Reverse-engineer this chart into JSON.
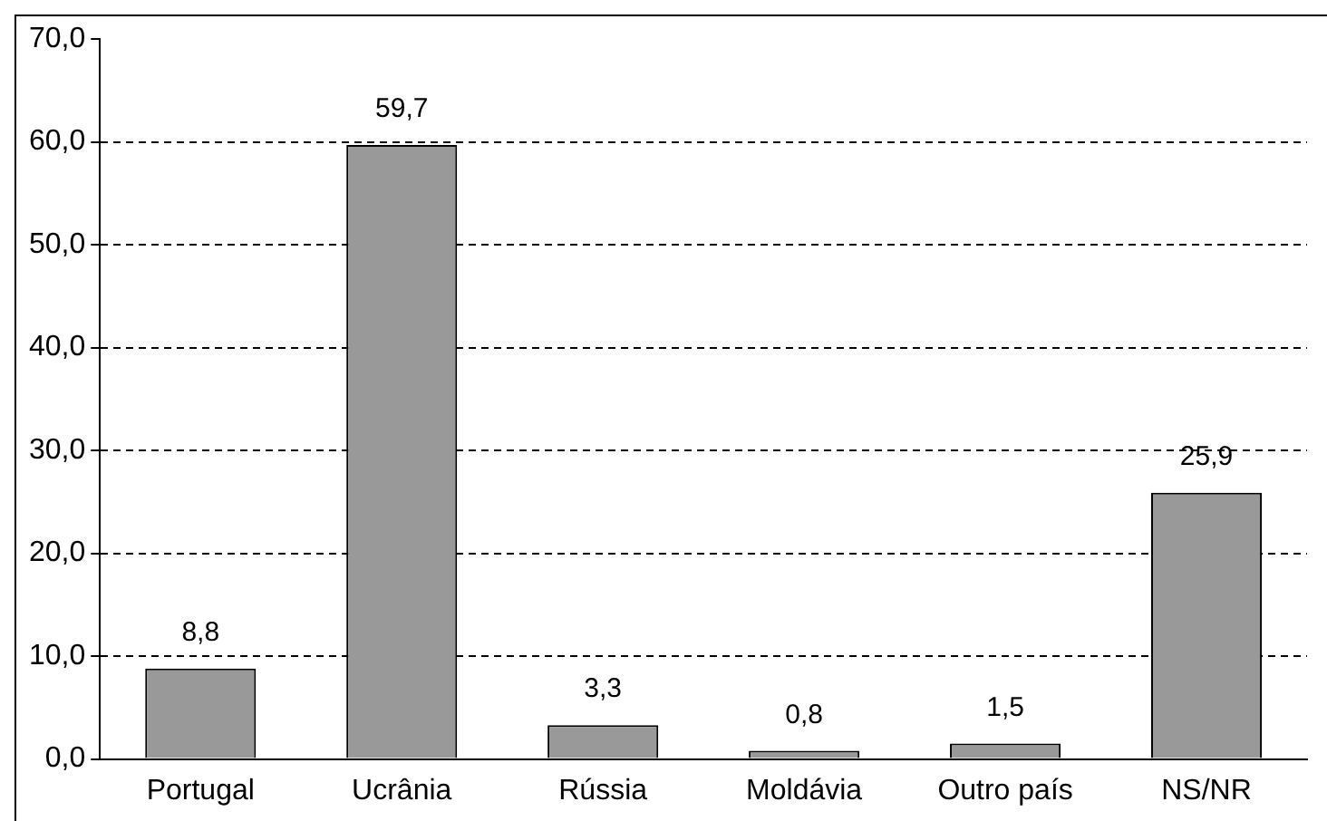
{
  "chart_data": {
    "type": "bar",
    "categories": [
      "Portugal",
      "Ucrânia",
      "Rússia",
      "Moldávia",
      "Outro país",
      "NS/NR"
    ],
    "values": [
      8.8,
      59.7,
      3.3,
      0.8,
      1.5,
      25.9
    ],
    "value_labels": [
      "8,8",
      "59,7",
      "3,3",
      "0,8",
      "1,5",
      "25,9"
    ],
    "color": "#999999",
    "ylim": [
      0,
      70
    ],
    "yticks": [
      {
        "value": 0,
        "label": "0,0"
      },
      {
        "value": 10,
        "label": "10,0"
      },
      {
        "value": 20,
        "label": "20,0"
      },
      {
        "value": 30,
        "label": "30,0"
      },
      {
        "value": 40,
        "label": "40,0"
      },
      {
        "value": 50,
        "label": "50,0"
      },
      {
        "value": 60,
        "label": "60,0"
      },
      {
        "value": 70,
        "label": "70,0"
      }
    ],
    "grid": "y",
    "legend": false
  }
}
